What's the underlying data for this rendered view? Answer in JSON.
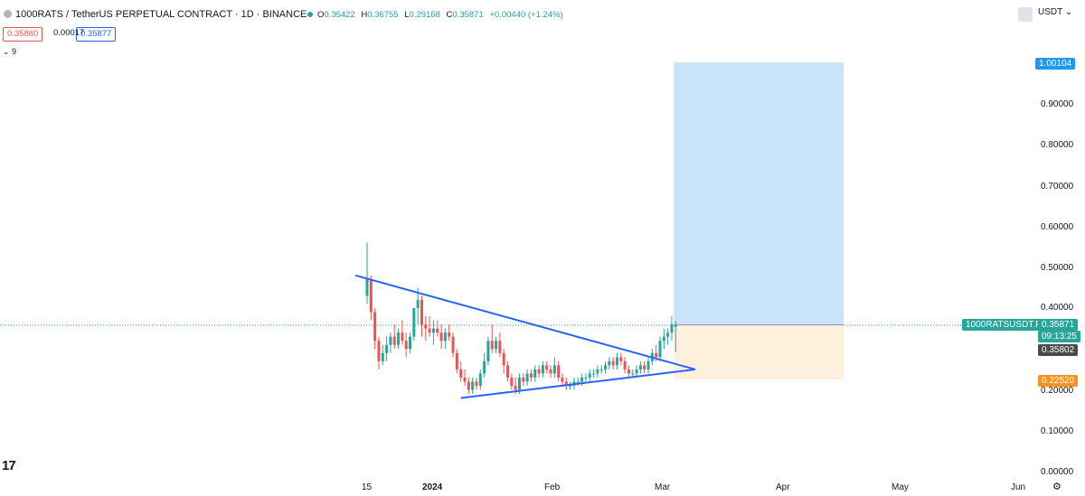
{
  "header": {
    "title": "1000RATS / TetherUS PERPETUAL CONTRACT · 1D · BINANCE",
    "ohlc": {
      "o_label": "O",
      "o": "0.35422",
      "h_label": "H",
      "h": "0.36755",
      "l_label": "L",
      "l": "0.29168",
      "c_label": "C",
      "c": "0.35871",
      "change": "+0.00440 (+1.24%)"
    },
    "sell_price": "0.35860",
    "spread": "0.00017",
    "buy_price": "0.35877",
    "volume_toggle": "⌄ 9",
    "currency": "USDT"
  },
  "price_axis": {
    "ticks": [
      "0.90000",
      "0.80000",
      "0.70000",
      "0.60000",
      "0.50000",
      "0.40000",
      "0.20000",
      "0.10000",
      "0.00000"
    ],
    "target_badge": "1.00104",
    "symbol_badge": "1000RATSUSDT.P",
    "last_price": "0.35871",
    "countdown": "09:13:25",
    "crosshair_price": "0.35802",
    "stop_badge": "0.22520"
  },
  "time_axis": {
    "labels": [
      "15",
      "2024",
      "Feb",
      "Mar",
      "Apr",
      "May",
      "Jun"
    ]
  },
  "colors": {
    "up": "#26a69a",
    "down": "#ef5350",
    "trendline": "#2962ff",
    "target_zone": "#c9e3fa",
    "stop_zone": "#fdf1de"
  },
  "chart_data": {
    "type": "candlestick",
    "title": "1000RATS / TetherUS PERPETUAL CONTRACT · 1D · BINANCE",
    "ylim": [
      0,
      1.05
    ],
    "grid": false,
    "x_ticks": [
      "15",
      "2024",
      "Feb",
      "Mar",
      "Apr",
      "May",
      "Jun"
    ],
    "y_ticks": [
      0.0,
      0.1,
      0.2,
      0.3,
      0.4,
      0.5,
      0.6,
      0.7,
      0.8,
      0.9,
      1.0
    ],
    "candles": [
      {
        "date": "2023-12-15",
        "o": 0.43,
        "h": 0.56,
        "l": 0.41,
        "c": 0.47
      },
      {
        "date": "2023-12-16",
        "o": 0.47,
        "h": 0.48,
        "l": 0.37,
        "c": 0.39
      },
      {
        "date": "2023-12-17",
        "o": 0.39,
        "h": 0.4,
        "l": 0.3,
        "c": 0.32
      },
      {
        "date": "2023-12-18",
        "o": 0.32,
        "h": 0.33,
        "l": 0.25,
        "c": 0.27
      },
      {
        "date": "2023-12-19",
        "o": 0.27,
        "h": 0.31,
        "l": 0.26,
        "c": 0.29
      },
      {
        "date": "2023-12-20",
        "o": 0.29,
        "h": 0.33,
        "l": 0.27,
        "c": 0.31
      },
      {
        "date": "2023-12-21",
        "o": 0.31,
        "h": 0.34,
        "l": 0.29,
        "c": 0.33
      },
      {
        "date": "2023-12-22",
        "o": 0.33,
        "h": 0.36,
        "l": 0.3,
        "c": 0.31
      },
      {
        "date": "2023-12-23",
        "o": 0.31,
        "h": 0.35,
        "l": 0.3,
        "c": 0.34
      },
      {
        "date": "2023-12-24",
        "o": 0.34,
        "h": 0.37,
        "l": 0.31,
        "c": 0.32
      },
      {
        "date": "2023-12-25",
        "o": 0.32,
        "h": 0.34,
        "l": 0.28,
        "c": 0.3
      },
      {
        "date": "2023-12-26",
        "o": 0.3,
        "h": 0.34,
        "l": 0.29,
        "c": 0.33
      },
      {
        "date": "2023-12-27",
        "o": 0.33,
        "h": 0.4,
        "l": 0.32,
        "c": 0.4
      },
      {
        "date": "2023-12-28",
        "o": 0.4,
        "h": 0.45,
        "l": 0.36,
        "c": 0.42
      },
      {
        "date": "2023-12-29",
        "o": 0.42,
        "h": 0.43,
        "l": 0.33,
        "c": 0.36
      },
      {
        "date": "2023-12-30",
        "o": 0.36,
        "h": 0.38,
        "l": 0.32,
        "c": 0.35
      },
      {
        "date": "2023-12-31",
        "o": 0.35,
        "h": 0.38,
        "l": 0.33,
        "c": 0.34
      },
      {
        "date": "2024-01-01",
        "o": 0.34,
        "h": 0.37,
        "l": 0.31,
        "c": 0.35
      },
      {
        "date": "2024-01-02",
        "o": 0.35,
        "h": 0.37,
        "l": 0.33,
        "c": 0.34
      },
      {
        "date": "2024-01-03",
        "o": 0.34,
        "h": 0.36,
        "l": 0.3,
        "c": 0.32
      },
      {
        "date": "2024-01-04",
        "o": 0.32,
        "h": 0.35,
        "l": 0.3,
        "c": 0.34
      },
      {
        "date": "2024-01-05",
        "o": 0.34,
        "h": 0.36,
        "l": 0.32,
        "c": 0.33
      },
      {
        "date": "2024-01-06",
        "o": 0.33,
        "h": 0.34,
        "l": 0.28,
        "c": 0.29
      },
      {
        "date": "2024-01-07",
        "o": 0.29,
        "h": 0.3,
        "l": 0.24,
        "c": 0.25
      },
      {
        "date": "2024-01-08",
        "o": 0.25,
        "h": 0.27,
        "l": 0.22,
        "c": 0.23
      },
      {
        "date": "2024-01-09",
        "o": 0.23,
        "h": 0.25,
        "l": 0.21,
        "c": 0.22
      },
      {
        "date": "2024-01-10",
        "o": 0.22,
        "h": 0.23,
        "l": 0.19,
        "c": 0.2
      },
      {
        "date": "2024-01-11",
        "o": 0.2,
        "h": 0.23,
        "l": 0.19,
        "c": 0.22
      },
      {
        "date": "2024-01-12",
        "o": 0.22,
        "h": 0.23,
        "l": 0.2,
        "c": 0.21
      },
      {
        "date": "2024-01-13",
        "o": 0.21,
        "h": 0.25,
        "l": 0.2,
        "c": 0.24
      },
      {
        "date": "2024-01-14",
        "o": 0.24,
        "h": 0.29,
        "l": 0.23,
        "c": 0.27
      },
      {
        "date": "2024-01-15",
        "o": 0.27,
        "h": 0.33,
        "l": 0.26,
        "c": 0.32
      },
      {
        "date": "2024-01-16",
        "o": 0.32,
        "h": 0.36,
        "l": 0.29,
        "c": 0.3
      },
      {
        "date": "2024-01-17",
        "o": 0.3,
        "h": 0.33,
        "l": 0.29,
        "c": 0.32
      },
      {
        "date": "2024-01-18",
        "o": 0.32,
        "h": 0.34,
        "l": 0.28,
        "c": 0.29
      },
      {
        "date": "2024-01-19",
        "o": 0.29,
        "h": 0.3,
        "l": 0.24,
        "c": 0.26
      },
      {
        "date": "2024-01-20",
        "o": 0.26,
        "h": 0.27,
        "l": 0.22,
        "c": 0.23
      },
      {
        "date": "2024-01-21",
        "o": 0.23,
        "h": 0.24,
        "l": 0.2,
        "c": 0.21
      },
      {
        "date": "2024-01-22",
        "o": 0.21,
        "h": 0.23,
        "l": 0.19,
        "c": 0.2
      },
      {
        "date": "2024-01-23",
        "o": 0.2,
        "h": 0.24,
        "l": 0.19,
        "c": 0.23
      },
      {
        "date": "2024-01-24",
        "o": 0.23,
        "h": 0.24,
        "l": 0.21,
        "c": 0.22
      },
      {
        "date": "2024-01-25",
        "o": 0.22,
        "h": 0.25,
        "l": 0.21,
        "c": 0.24
      },
      {
        "date": "2024-01-26",
        "o": 0.24,
        "h": 0.25,
        "l": 0.22,
        "c": 0.23
      },
      {
        "date": "2024-01-27",
        "o": 0.23,
        "h": 0.26,
        "l": 0.22,
        "c": 0.25
      },
      {
        "date": "2024-01-28",
        "o": 0.25,
        "h": 0.26,
        "l": 0.23,
        "c": 0.24
      },
      {
        "date": "2024-01-29",
        "o": 0.24,
        "h": 0.27,
        "l": 0.23,
        "c": 0.26
      },
      {
        "date": "2024-01-30",
        "o": 0.26,
        "h": 0.27,
        "l": 0.24,
        "c": 0.25
      },
      {
        "date": "2024-01-31",
        "o": 0.25,
        "h": 0.26,
        "l": 0.23,
        "c": 0.24
      },
      {
        "date": "2024-02-01",
        "o": 0.24,
        "h": 0.28,
        "l": 0.23,
        "c": 0.26
      },
      {
        "date": "2024-02-02",
        "o": 0.26,
        "h": 0.27,
        "l": 0.22,
        "c": 0.23
      },
      {
        "date": "2024-02-03",
        "o": 0.23,
        "h": 0.24,
        "l": 0.21,
        "c": 0.22
      },
      {
        "date": "2024-02-04",
        "o": 0.22,
        "h": 0.23,
        "l": 0.2,
        "c": 0.21
      },
      {
        "date": "2024-02-05",
        "o": 0.21,
        "h": 0.22,
        "l": 0.2,
        "c": 0.21
      },
      {
        "date": "2024-02-06",
        "o": 0.21,
        "h": 0.23,
        "l": 0.2,
        "c": 0.22
      },
      {
        "date": "2024-02-07",
        "o": 0.22,
        "h": 0.23,
        "l": 0.21,
        "c": 0.22
      },
      {
        "date": "2024-02-08",
        "o": 0.22,
        "h": 0.24,
        "l": 0.21,
        "c": 0.23
      },
      {
        "date": "2024-02-09",
        "o": 0.23,
        "h": 0.24,
        "l": 0.22,
        "c": 0.23
      },
      {
        "date": "2024-02-10",
        "o": 0.23,
        "h": 0.25,
        "l": 0.22,
        "c": 0.24
      },
      {
        "date": "2024-02-11",
        "o": 0.24,
        "h": 0.25,
        "l": 0.23,
        "c": 0.24
      },
      {
        "date": "2024-02-12",
        "o": 0.24,
        "h": 0.26,
        "l": 0.23,
        "c": 0.25
      },
      {
        "date": "2024-02-13",
        "o": 0.25,
        "h": 0.26,
        "l": 0.24,
        "c": 0.25
      },
      {
        "date": "2024-02-14",
        "o": 0.25,
        "h": 0.27,
        "l": 0.24,
        "c": 0.26
      },
      {
        "date": "2024-02-15",
        "o": 0.26,
        "h": 0.28,
        "l": 0.25,
        "c": 0.27
      },
      {
        "date": "2024-02-16",
        "o": 0.27,
        "h": 0.28,
        "l": 0.25,
        "c": 0.26
      },
      {
        "date": "2024-02-17",
        "o": 0.26,
        "h": 0.29,
        "l": 0.25,
        "c": 0.28
      },
      {
        "date": "2024-02-18",
        "o": 0.28,
        "h": 0.29,
        "l": 0.26,
        "c": 0.27
      },
      {
        "date": "2024-02-19",
        "o": 0.27,
        "h": 0.28,
        "l": 0.24,
        "c": 0.25
      },
      {
        "date": "2024-02-20",
        "o": 0.25,
        "h": 0.26,
        "l": 0.23,
        "c": 0.24
      },
      {
        "date": "2024-02-21",
        "o": 0.24,
        "h": 0.25,
        "l": 0.23,
        "c": 0.24
      },
      {
        "date": "2024-02-22",
        "o": 0.24,
        "h": 0.26,
        "l": 0.23,
        "c": 0.25
      },
      {
        "date": "2024-02-23",
        "o": 0.25,
        "h": 0.27,
        "l": 0.24,
        "c": 0.26
      },
      {
        "date": "2024-02-24",
        "o": 0.26,
        "h": 0.27,
        "l": 0.24,
        "c": 0.25
      },
      {
        "date": "2024-02-25",
        "o": 0.25,
        "h": 0.28,
        "l": 0.24,
        "c": 0.27
      },
      {
        "date": "2024-02-26",
        "o": 0.27,
        "h": 0.3,
        "l": 0.26,
        "c": 0.29
      },
      {
        "date": "2024-02-27",
        "o": 0.29,
        "h": 0.31,
        "l": 0.27,
        "c": 0.28
      },
      {
        "date": "2024-02-28",
        "o": 0.28,
        "h": 0.33,
        "l": 0.27,
        "c": 0.32
      },
      {
        "date": "2024-02-29",
        "o": 0.32,
        "h": 0.35,
        "l": 0.3,
        "c": 0.33
      },
      {
        "date": "2024-03-01",
        "o": 0.33,
        "h": 0.35,
        "l": 0.31,
        "c": 0.34
      },
      {
        "date": "2024-03-02",
        "o": 0.34,
        "h": 0.38,
        "l": 0.32,
        "c": 0.36
      },
      {
        "date": "2024-03-03",
        "o": 0.354,
        "h": 0.368,
        "l": 0.292,
        "c": 0.359
      }
    ],
    "trendlines": [
      {
        "name": "upper",
        "from": [
          "2023-12-12",
          0.48
        ],
        "to": [
          "2024-03-08",
          0.25
        ]
      },
      {
        "name": "lower",
        "from": [
          "2024-01-08",
          0.18
        ],
        "to": [
          "2024-03-08",
          0.25
        ]
      }
    ],
    "position": {
      "start": "2024-03-03",
      "end": "2024-04-15",
      "entry": 0.35871,
      "target": 1.00104,
      "stop": 0.2252
    }
  }
}
